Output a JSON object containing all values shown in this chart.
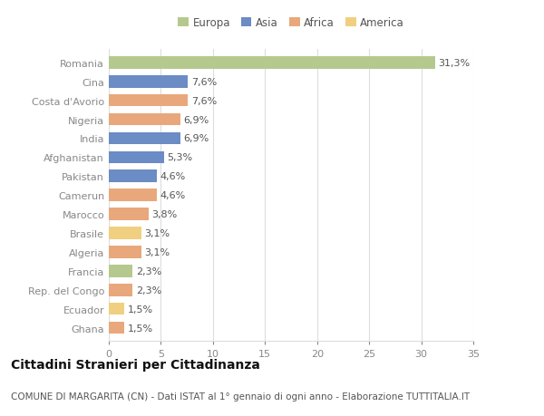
{
  "categories": [
    "Romania",
    "Cina",
    "Costa d'Avorio",
    "Nigeria",
    "India",
    "Afghanistan",
    "Pakistan",
    "Camerun",
    "Marocco",
    "Brasile",
    "Algeria",
    "Francia",
    "Rep. del Congo",
    "Ecuador",
    "Ghana"
  ],
  "values": [
    31.3,
    7.6,
    7.6,
    6.9,
    6.9,
    5.3,
    4.6,
    4.6,
    3.8,
    3.1,
    3.1,
    2.3,
    2.3,
    1.5,
    1.5
  ],
  "labels": [
    "31,3%",
    "7,6%",
    "7,6%",
    "6,9%",
    "6,9%",
    "5,3%",
    "4,6%",
    "4,6%",
    "3,8%",
    "3,1%",
    "3,1%",
    "2,3%",
    "2,3%",
    "1,5%",
    "1,5%"
  ],
  "colors": [
    "#b5c98e",
    "#6b8cc4",
    "#e8a87c",
    "#e8a87c",
    "#6b8cc4",
    "#6b8cc4",
    "#6b8cc4",
    "#e8a87c",
    "#e8a87c",
    "#f0d080",
    "#e8a87c",
    "#b5c98e",
    "#e8a87c",
    "#f0d080",
    "#e8a87c"
  ],
  "legend_labels": [
    "Europa",
    "Asia",
    "Africa",
    "America"
  ],
  "legend_colors": [
    "#b5c98e",
    "#6b8cc4",
    "#e8a87c",
    "#f0d080"
  ],
  "xlim": [
    0,
    35
  ],
  "xticks": [
    0,
    5,
    10,
    15,
    20,
    25,
    30,
    35
  ],
  "title": "Cittadini Stranieri per Cittadinanza",
  "subtitle": "COMUNE DI MARGARITA (CN) - Dati ISTAT al 1° gennaio di ogni anno - Elaborazione TUTTITALIA.IT",
  "background_color": "#ffffff",
  "plot_background_color": "#ffffff",
  "grid_color": "#dddddd",
  "bar_height": 0.65,
  "label_fontsize": 8,
  "tick_fontsize": 8,
  "title_fontsize": 10,
  "subtitle_fontsize": 7.5
}
